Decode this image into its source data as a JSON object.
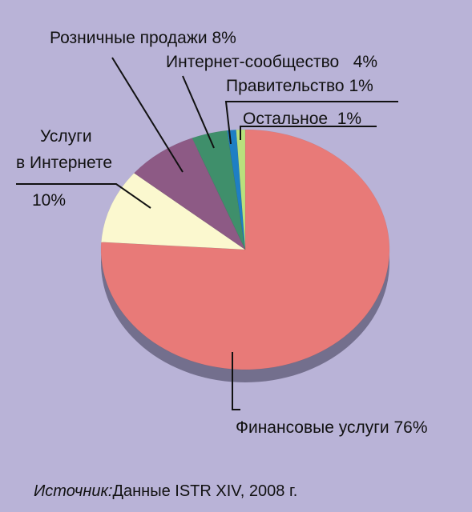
{
  "chart_data": {
    "type": "pie",
    "slices": [
      {
        "label": "Финансовые услуги",
        "value": 76,
        "value_text": "76%",
        "color": "#e87a78"
      },
      {
        "label": "Услуги в Интернете",
        "label_lines": [
          "Услуги",
          "в Интернете"
        ],
        "value": 10,
        "value_text": "10%",
        "color": "#fbf8cf"
      },
      {
        "label": "Розничные продажи",
        "value": 8,
        "value_text": "8%",
        "color": "#8d5a85"
      },
      {
        "label": "Интернет-сообщество",
        "value": 4,
        "value_text": "4%",
        "color": "#3f8f6b"
      },
      {
        "label": "Правительство",
        "value": 1,
        "value_text": "1%",
        "color": "#1e7fc4"
      },
      {
        "label": "Остальное",
        "value": 1,
        "value_text": "1%",
        "color": "#b9e07d"
      }
    ]
  },
  "source": {
    "prefix": "Источник:",
    "text": "Данные ISTR XIV, 2008 г."
  }
}
